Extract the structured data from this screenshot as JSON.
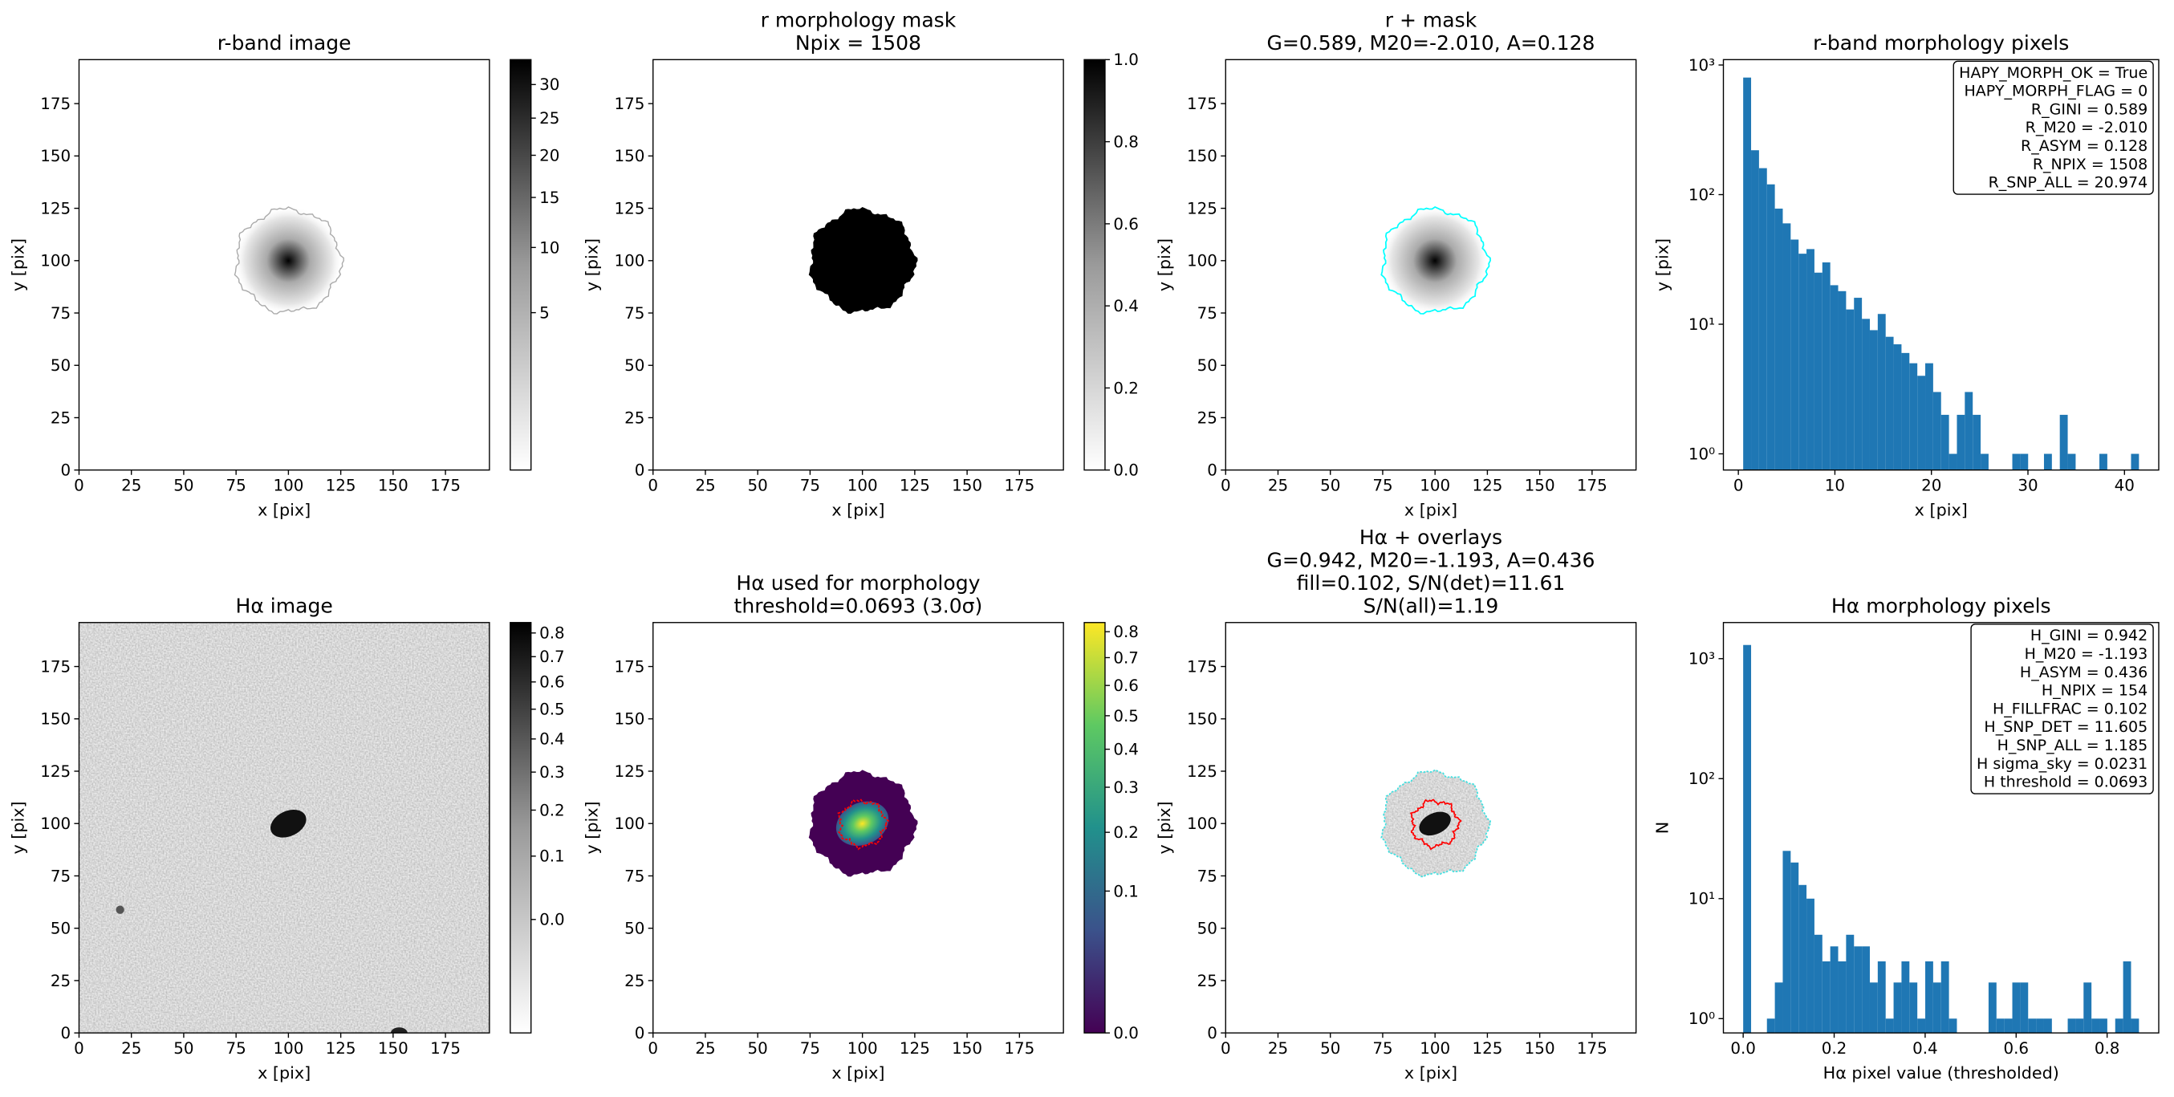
{
  "chart_data": [
    {
      "type": "image",
      "title": [
        "r-band image"
      ],
      "xlabel": "x [pix]",
      "ylabel": "y [pix]",
      "xlim": [
        0,
        196
      ],
      "ylim": [
        0,
        196
      ],
      "xticks": [
        0,
        25,
        50,
        75,
        100,
        125,
        150,
        175
      ],
      "yticks": [
        0,
        25,
        50,
        75,
        100,
        125,
        150,
        175
      ],
      "colorbar": {
        "cmap": "Greys",
        "scale": "sqrt",
        "ylim": [
          0,
          34
        ],
        "yticks": [
          5,
          10,
          15,
          20,
          25,
          30
        ]
      }
    },
    {
      "type": "image",
      "title": [
        "r morphology mask",
        "Npix = 1508"
      ],
      "xlabel": "x [pix]",
      "ylabel": "y [pix]",
      "xlim": [
        0,
        196
      ],
      "ylim": [
        0,
        196
      ],
      "xticks": [
        0,
        25,
        50,
        75,
        100,
        125,
        150,
        175
      ],
      "yticks": [
        0,
        25,
        50,
        75,
        100,
        125,
        150,
        175
      ],
      "colorbar": {
        "cmap": "Greys",
        "scale": "linear",
        "ylim": [
          0,
          1
        ],
        "yticks": [
          {
            "value": 0,
            "label": "0.0"
          },
          0.2,
          0.4,
          0.6,
          0.8,
          {
            "value": 1,
            "label": "1.0"
          }
        ]
      }
    },
    {
      "type": "image",
      "title": [
        "r + mask",
        "G=0.589, M20=-2.010, A=0.128"
      ],
      "xlabel": "x [pix]",
      "ylabel": "y [pix]",
      "xlim": [
        0,
        196
      ],
      "ylim": [
        0,
        196
      ],
      "xticks": [
        0,
        25,
        50,
        75,
        100,
        125,
        150,
        175
      ],
      "yticks": [
        0,
        25,
        50,
        75,
        100,
        125,
        150,
        175
      ]
    },
    {
      "type": "histogram",
      "title": [
        "r-band morphology pixels"
      ],
      "xlabel": "x [pix]",
      "ylabel": "y [pix]",
      "color": "#1f77b4",
      "log_y": true,
      "bins": [
        0.5,
        1.32,
        2.14,
        2.96,
        3.78,
        4.6,
        5.42,
        6.24,
        7.06,
        7.88,
        8.7,
        9.52,
        10.34,
        11.16,
        11.98,
        12.8,
        13.62,
        14.44,
        15.26,
        16.08,
        16.9,
        17.72,
        18.54,
        19.36,
        20.18,
        21,
        21.82,
        22.64,
        23.46,
        24.28,
        25.1,
        25.92,
        26.74,
        27.56,
        28.38,
        29.2,
        30.02,
        30.84,
        31.66,
        32.48,
        33.3,
        34.12,
        34.94,
        35.76,
        36.58,
        37.4,
        38.22,
        39.04,
        39.86,
        40.68,
        41.5
      ],
      "values": [
        800,
        220,
        160,
        120,
        78,
        60,
        45,
        35,
        38,
        25,
        30,
        20,
        18,
        13,
        16,
        11,
        9,
        12,
        8,
        7,
        6,
        5,
        4,
        5,
        3,
        2,
        1,
        2,
        3,
        2,
        1,
        0,
        0,
        0,
        1,
        1,
        0,
        0,
        1,
        0,
        2,
        1,
        0,
        0,
        0,
        1,
        0,
        0,
        0,
        1
      ],
      "xlim": [
        -1.55,
        43.55
      ],
      "ylim": [
        0.75,
        1100
      ],
      "xticks": [
        0,
        10,
        20,
        30,
        40
      ],
      "yticks": [
        {
          "value": 1,
          "label": "10⁰"
        },
        {
          "value": 10,
          "label": "10¹"
        },
        {
          "value": 100,
          "label": "10²"
        },
        {
          "value": 1000,
          "label": "10³"
        }
      ],
      "annotation": [
        "HAPY_MORPH_OK = True",
        "HAPY_MORPH_FLAG = 0",
        "R_GINI = 0.589",
        "R_M20 = -2.010",
        "R_ASYM = 0.128",
        "R_NPIX = 1508",
        "R_SNP_ALL = 20.974"
      ]
    },
    {
      "type": "image",
      "title": [
        "Hα image"
      ],
      "xlabel": "x [pix]",
      "ylabel": "y [pix]",
      "xlim": [
        0,
        196
      ],
      "ylim": [
        0,
        196
      ],
      "xticks": [
        0,
        25,
        50,
        75,
        100,
        125,
        150,
        175
      ],
      "yticks": [
        0,
        25,
        50,
        75,
        100,
        125,
        150,
        175
      ],
      "colorbar": {
        "cmap": "Greys",
        "scale": "sqrt",
        "ylim": [
          -0.07,
          0.846
        ],
        "yticks": [
          {
            "value": 0,
            "label": "0.0"
          },
          0.1,
          0.2,
          0.3,
          0.4,
          0.5,
          0.6,
          0.7,
          0.8
        ]
      }
    },
    {
      "type": "image",
      "title": [
        "Hα used for morphology",
        "threshold=0.0693 (3.0σ)"
      ],
      "xlabel": "x [pix]",
      "ylabel": "y [pix]",
      "xlim": [
        0,
        196
      ],
      "ylim": [
        0,
        196
      ],
      "xticks": [
        0,
        25,
        50,
        75,
        100,
        125,
        150,
        175
      ],
      "yticks": [
        0,
        25,
        50,
        75,
        100,
        125,
        150,
        175
      ],
      "colorbar": {
        "cmap": "viridis",
        "scale": "sqrt",
        "ylim": [
          0,
          0.837
        ],
        "yticks": [
          {
            "value": 0,
            "label": "0.0"
          },
          0.1,
          0.2,
          0.3,
          0.4,
          0.5,
          0.6,
          0.7,
          0.8
        ]
      }
    },
    {
      "type": "image",
      "title": [
        "Hα + overlays",
        "G=0.942, M20=-1.193, A=0.436",
        "fill=0.102, S/N(det)=11.61",
        "S/N(all)=1.19"
      ],
      "xlabel": "x [pix]",
      "ylabel": "y [pix]",
      "xlim": [
        0,
        196
      ],
      "ylim": [
        0,
        196
      ],
      "xticks": [
        0,
        25,
        50,
        75,
        100,
        125,
        150,
        175
      ],
      "yticks": [
        0,
        25,
        50,
        75,
        100,
        125,
        150,
        175
      ]
    },
    {
      "type": "histogram",
      "title": [
        "Hα morphology pixels"
      ],
      "xlabel": "Hα pixel value (thresholded)",
      "ylabel": "N",
      "color": "#1f77b4",
      "log_y": true,
      "bins": [
        0,
        0.0174,
        0.0348,
        0.0522,
        0.0696,
        0.087,
        0.1044,
        0.1218,
        0.1392,
        0.1566,
        0.174,
        0.1914,
        0.2088,
        0.2262,
        0.2436,
        0.261,
        0.2784,
        0.2958,
        0.3132,
        0.3306,
        0.348,
        0.3654,
        0.3828,
        0.4002,
        0.4176,
        0.435,
        0.4524,
        0.4698,
        0.4872,
        0.5046,
        0.522,
        0.5394,
        0.5568,
        0.5742,
        0.5916,
        0.609,
        0.6264,
        0.6438,
        0.6612,
        0.6786,
        0.696,
        0.7134,
        0.7308,
        0.7482,
        0.7656,
        0.783,
        0.8004,
        0.8178,
        0.8352,
        0.8526,
        0.87
      ],
      "values": [
        1300,
        0,
        0,
        1,
        2,
        25,
        20,
        13,
        10,
        5,
        3,
        4,
        3,
        5,
        4,
        4,
        2,
        3,
        1,
        2,
        3,
        2,
        1,
        3,
        2,
        3,
        1,
        0,
        0,
        0,
        0,
        2,
        1,
        1,
        2,
        2,
        1,
        1,
        1,
        0,
        0,
        1,
        1,
        2,
        1,
        1,
        0,
        1,
        3,
        1
      ],
      "xlim": [
        -0.0435,
        0.9135
      ],
      "ylim": [
        0.76,
        2000
      ],
      "xticks": [
        {
          "value": 0,
          "label": "0.0"
        },
        0.2,
        0.4,
        0.6,
        0.8
      ],
      "yticks": [
        {
          "value": 1,
          "label": "10⁰"
        },
        {
          "value": 10,
          "label": "10¹"
        },
        {
          "value": 100,
          "label": "10²"
        },
        {
          "value": 1000,
          "label": "10³"
        }
      ],
      "annotation": [
        "H_GINI = 0.942",
        "H_M20 = -1.193",
        "H_ASYM = 0.436",
        "H_NPIX = 154",
        "H_FILLFRAC = 0.102",
        "H_SNP_DET = 11.605",
        "H_SNP_ALL = 1.185",
        "H sigma_sky = 0.0231",
        "H threshold = 0.0693"
      ]
    }
  ]
}
